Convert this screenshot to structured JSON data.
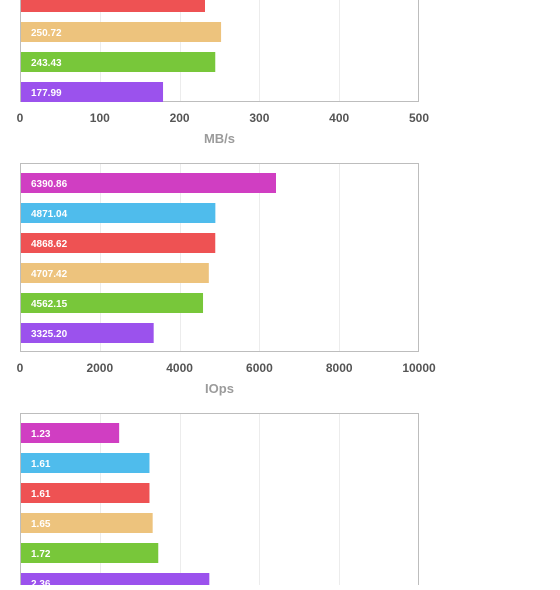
{
  "chart_data": [
    {
      "type": "bar",
      "orientation": "horizontal",
      "xlabel": "MB/s",
      "xlim": [
        0,
        500
      ],
      "xticks": [
        "0",
        "100",
        "200",
        "300",
        "400",
        "500"
      ],
      "grid": true,
      "values": [
        null,
        250.72,
        243.43,
        177.99
      ],
      "labels": [
        "",
        "250.72",
        "243.43",
        "177.99"
      ],
      "colors": [
        "#ee5253",
        "#edc37d",
        "#78c73a",
        "#9b52ed"
      ],
      "note": "top of chart cut off; first visible bar is partially shown without a readable label"
    },
    {
      "type": "bar",
      "orientation": "horizontal",
      "xlabel": "IOps",
      "xlim": [
        0,
        10000
      ],
      "xticks": [
        "0",
        "2000",
        "4000",
        "6000",
        "8000",
        "10000"
      ],
      "grid": true,
      "values": [
        6390.86,
        4871.04,
        4868.62,
        4707.42,
        4562.15,
        3325.2
      ],
      "labels": [
        "6390.86",
        "4871.04",
        "4868.62",
        "4707.42",
        "4562.15",
        "3325.20"
      ],
      "colors": [
        "#d03ec2",
        "#4fbcec",
        "#ee5253",
        "#edc37d",
        "#78c73a",
        "#9b52ed"
      ]
    },
    {
      "type": "bar",
      "orientation": "horizontal",
      "xlabel": "",
      "xlim": [
        0,
        5
      ],
      "grid": true,
      "values": [
        1.23,
        1.61,
        1.61,
        1.65,
        1.72,
        2.36
      ],
      "labels": [
        "1.23",
        "1.61",
        "1.61",
        "1.65",
        "1.72",
        "2.36"
      ],
      "colors": [
        "#d03ec2",
        "#4fbcec",
        "#ee5253",
        "#edc37d",
        "#78c73a",
        "#9b52ed"
      ]
    }
  ]
}
